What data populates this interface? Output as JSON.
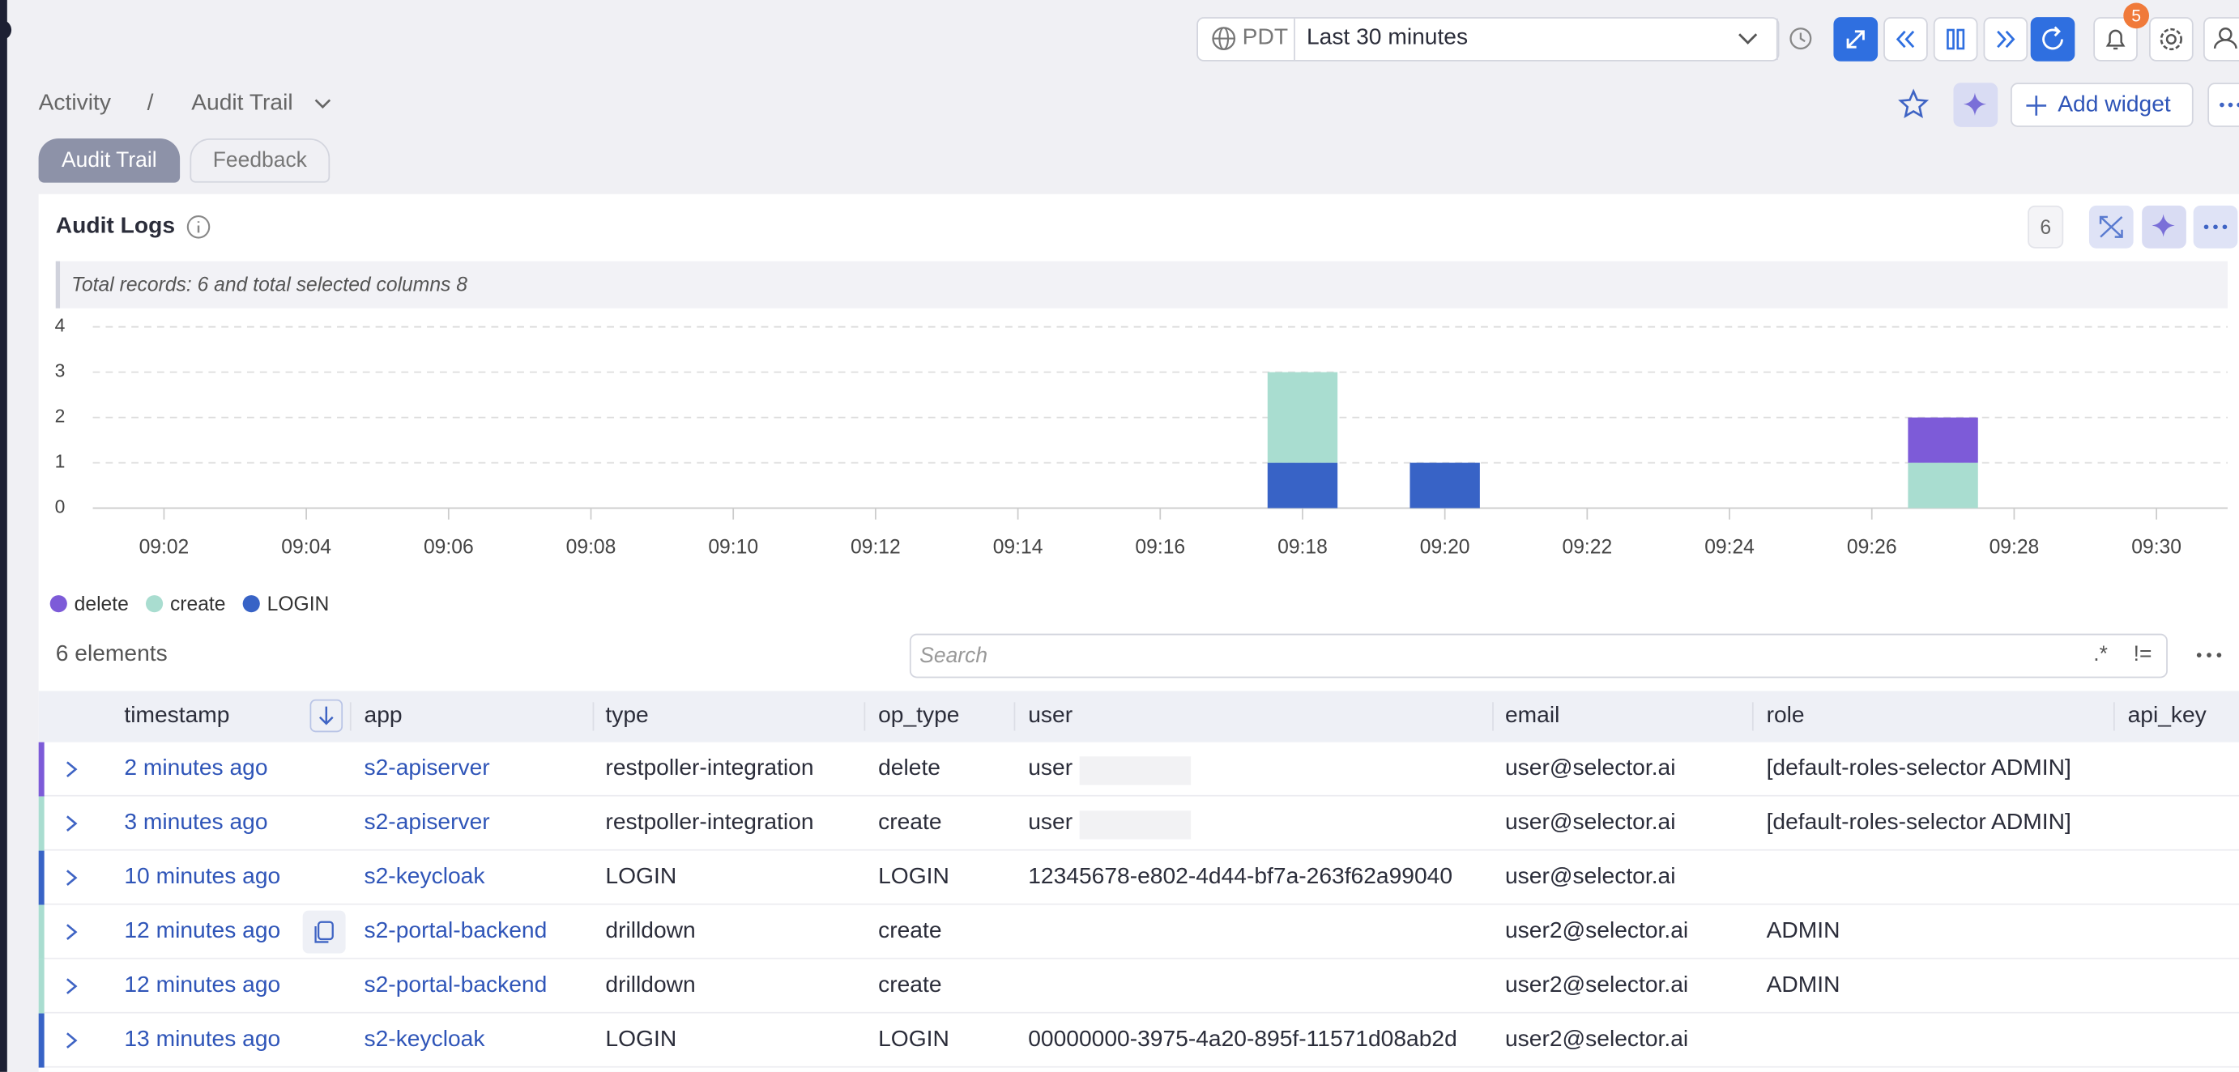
{
  "header": {
    "timezone": "PDT",
    "range": "Last 30 minutes",
    "notifications": "5",
    "add_widget": "Add widget"
  },
  "breadcrumb": {
    "root": "Activity",
    "separator": "/",
    "current": "Audit Trail"
  },
  "tabs": [
    "Audit Trail",
    "Feedback"
  ],
  "panel": {
    "title": "Audit Logs",
    "count": "6",
    "summary": "Total records: 6 and total selected columns 8",
    "elements": "6 elements",
    "search_placeholder": "Search",
    "regex": ".*",
    "not_equal": "!="
  },
  "chart_data": {
    "type": "bar",
    "stacked": true,
    "x": [
      "09:18",
      "09:20",
      "09:27"
    ],
    "series": [
      {
        "name": "delete",
        "color": "#7d5bd8",
        "values": [
          0,
          0,
          1
        ]
      },
      {
        "name": "create",
        "color": "#a9ddd0",
        "values": [
          2,
          0,
          1
        ]
      },
      {
        "name": "LOGIN",
        "color": "#3863c6",
        "values": [
          1,
          1,
          0
        ]
      }
    ],
    "xlim": [
      "09:01",
      "09:31"
    ],
    "xticks": [
      "09:02",
      "09:04",
      "09:06",
      "09:08",
      "09:10",
      "09:12",
      "09:14",
      "09:16",
      "09:18",
      "09:20",
      "09:22",
      "09:24",
      "09:26",
      "09:28",
      "09:30"
    ],
    "ylim": [
      0,
      4
    ],
    "yticks": [
      0,
      1,
      2,
      3,
      4
    ],
    "grid": true,
    "legend": "bottom-left"
  },
  "table": {
    "columns": [
      "timestamp",
      "app",
      "type",
      "op_type",
      "user",
      "email",
      "role",
      "api_key"
    ],
    "rows": [
      [
        "2 minutes ago",
        "s2-apiserver",
        "restpoller-integration",
        "delete",
        "user",
        "user@selector.ai",
        "[default-roles-selector ADMIN]",
        null
      ],
      [
        "3 minutes ago",
        "s2-apiserver",
        "restpoller-integration",
        "create",
        "user",
        "user@selector.ai",
        "[default-roles-selector ADMIN]",
        null
      ],
      [
        "10 minutes ago",
        "s2-keycloak",
        "LOGIN",
        "LOGIN",
        "12345678-e802-4d44-bf7a-263f62a99040",
        "user@selector.ai",
        null,
        null
      ],
      [
        "12 minutes ago",
        "s2-portal-backend",
        "drilldown",
        "create",
        null,
        "user2@selector.ai",
        "ADMIN",
        null
      ],
      [
        "12 minutes ago",
        "s2-portal-backend",
        "drilldown",
        "create",
        null,
        "user2@selector.ai",
        "ADMIN",
        null
      ],
      [
        "13 minutes ago",
        "s2-keycloak",
        "LOGIN",
        "LOGIN",
        "00000000-3975-4a20-895f-11571d08ab2d",
        "user2@selector.ai",
        null,
        null
      ]
    ]
  }
}
